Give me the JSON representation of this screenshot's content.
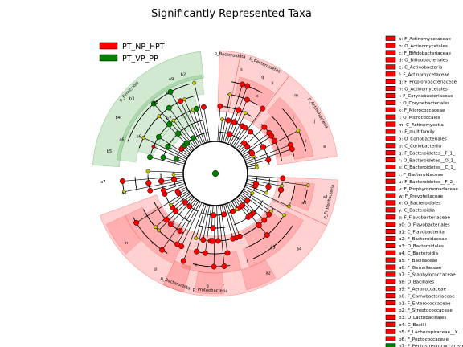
{
  "chart_data": {
    "type": "cladogram",
    "title": "Significantly Represented Taxa",
    "legend": [
      {
        "name": "PT_NP_HPT",
        "color": "#ff0000"
      },
      {
        "name": "PT_VP_PP",
        "color": "#008000"
      }
    ],
    "sectors": [
      {
        "label": "p_Firmicutes",
        "group": "PT_VP_PP",
        "color": "#008000",
        "start": 274,
        "end": 353,
        "inner": 120,
        "outer": 153
      },
      {
        "label": "p_Bacteroidota",
        "group": "PT_NP_HPT",
        "color": "#ff0000",
        "start": 2,
        "end": 12,
        "inner": 78,
        "outer": 153
      },
      {
        "label": "p_Bacteroidetes",
        "group": "PT_NP_HPT",
        "color": "#ff0000",
        "start": 12,
        "end": 37,
        "inner": 78,
        "outer": 153
      },
      {
        "label": "p_Actinobacteria",
        "group": "PT_NP_HPT",
        "color": "#ff0000",
        "start": 37,
        "end": 82,
        "inner": 78,
        "outer": 153
      },
      {
        "label": "p_Proteobacteria",
        "group": "PT_NP_HPT",
        "color": "#ff0000",
        "start": 93,
        "end": 115,
        "inner": 78,
        "outer": 153
      },
      {
        "label": "p_Proteobacteria",
        "group": "PT_NP_HPT",
        "color": "#ff0000",
        "start": 115,
        "end": 250,
        "inner": 78,
        "outer": 153
      },
      {
        "label": "p_Bacteroidota",
        "group": "PT_NP_HPT",
        "color": "#ff0000",
        "start": 195,
        "end": 205,
        "inner": 120,
        "outer": 153
      }
    ],
    "side_legend": [
      {
        "code": "a",
        "taxon": "F_Actinomycetaceae",
        "group": "PT_NP_HPT"
      },
      {
        "code": "b",
        "taxon": "O_Actinomycetales",
        "group": "PT_NP_HPT"
      },
      {
        "code": "c",
        "taxon": "F_Bifidobacteriaceae",
        "group": "PT_NP_HPT"
      },
      {
        "code": "d",
        "taxon": "O_Bifidobacteriales",
        "group": "PT_NP_HPT"
      },
      {
        "code": "e",
        "taxon": "C_Actinobacteria",
        "group": "PT_NP_HPT"
      },
      {
        "code": "f",
        "taxon": "F_Actinomycetaceae",
        "group": "PT_NP_HPT"
      },
      {
        "code": "g",
        "taxon": "F_Propionibacteriaceae",
        "group": "PT_NP_HPT"
      },
      {
        "code": "h",
        "taxon": "O_Actinomycetales",
        "group": "PT_NP_HPT"
      },
      {
        "code": "i",
        "taxon": "F_Corynebacteriaceae",
        "group": "PT_NP_HPT"
      },
      {
        "code": "j",
        "taxon": "O_Corynebacteriales",
        "group": "PT_NP_HPT"
      },
      {
        "code": "k",
        "taxon": "F_Micrococcaceae",
        "group": "PT_NP_HPT"
      },
      {
        "code": "l",
        "taxon": "O_Micrococcales",
        "group": "PT_NP_HPT"
      },
      {
        "code": "m",
        "taxon": "C_Actinomycetia",
        "group": "PT_NP_HPT"
      },
      {
        "code": "n",
        "taxon": "F_multifamily",
        "group": "PT_NP_HPT"
      },
      {
        "code": "o",
        "taxon": "O_Coriobacteriales",
        "group": "PT_NP_HPT"
      },
      {
        "code": "p",
        "taxon": "C_Coriobacteriia",
        "group": "PT_NP_HPT"
      },
      {
        "code": "q",
        "taxon": "F_Bacteroidetes__F_1_",
        "group": "PT_NP_HPT"
      },
      {
        "code": "r",
        "taxon": "O_Bacteroidetes__O_1_",
        "group": "PT_NP_HPT"
      },
      {
        "code": "s",
        "taxon": "C_Bacteroidetes__C_1_",
        "group": "PT_NP_HPT"
      },
      {
        "code": "t",
        "taxon": "F_Bacteroidaceae",
        "group": "PT_NP_HPT"
      },
      {
        "code": "u",
        "taxon": "F_Bacteroidetes__F_2_",
        "group": "PT_NP_HPT"
      },
      {
        "code": "v",
        "taxon": "F_Porphyromonadaceae",
        "group": "PT_NP_HPT"
      },
      {
        "code": "w",
        "taxon": "F_Prevotellaceae",
        "group": "PT_NP_HPT"
      },
      {
        "code": "x",
        "taxon": "O_Bacteroidales",
        "group": "PT_NP_HPT"
      },
      {
        "code": "y",
        "taxon": "C_Bacteroidia",
        "group": "PT_NP_HPT"
      },
      {
        "code": "z",
        "taxon": "F_Flavobacteriaceae",
        "group": "PT_NP_HPT"
      },
      {
        "code": "a0",
        "taxon": "O_Flavobacteriales",
        "group": "PT_NP_HPT"
      },
      {
        "code": "a1",
        "taxon": "C_Flavobacteriia",
        "group": "PT_NP_HPT"
      },
      {
        "code": "a2",
        "taxon": "F_Bacteroidaceae",
        "group": "PT_NP_HPT"
      },
      {
        "code": "a3",
        "taxon": "O_Bacteroidales",
        "group": "PT_NP_HPT"
      },
      {
        "code": "a4",
        "taxon": "C_Bacteroidia",
        "group": "PT_NP_HPT"
      },
      {
        "code": "a5",
        "taxon": "F_Bacillaceae",
        "group": "PT_NP_HPT"
      },
      {
        "code": "a6",
        "taxon": "F_Gemellaceae",
        "group": "PT_NP_HPT"
      },
      {
        "code": "a7",
        "taxon": "F_Staphylococcaceae",
        "group": "PT_NP_HPT"
      },
      {
        "code": "a8",
        "taxon": "O_Bacillales",
        "group": "PT_NP_HPT"
      },
      {
        "code": "a9",
        "taxon": "F_Aerococcaceae",
        "group": "PT_NP_HPT"
      },
      {
        "code": "b0",
        "taxon": "F_Carnobacteriaceae",
        "group": "PT_NP_HPT"
      },
      {
        "code": "b1",
        "taxon": "F_Enterococcaceae",
        "group": "PT_NP_HPT"
      },
      {
        "code": "b2",
        "taxon": "F_Streptococcaceae",
        "group": "PT_NP_HPT"
      },
      {
        "code": "b3",
        "taxon": "O_Lactobacillales",
        "group": "PT_NP_HPT"
      },
      {
        "code": "b4",
        "taxon": "C_Bacilli",
        "group": "PT_NP_HPT"
      },
      {
        "code": "b5",
        "taxon": "F_Lachnospiraceae__X",
        "group": "PT_NP_HPT"
      },
      {
        "code": "b6",
        "taxon": "F_Peptococcaceae",
        "group": "PT_NP_HPT"
      },
      {
        "code": "b7",
        "taxon": "F_Peptostreptococcaceae",
        "group": "PT_VP_PP"
      }
    ]
  },
  "colors": {
    "red": "#ff0000",
    "green": "#008000",
    "yellow": "#c8c800",
    "dark_red": "#b00000"
  }
}
